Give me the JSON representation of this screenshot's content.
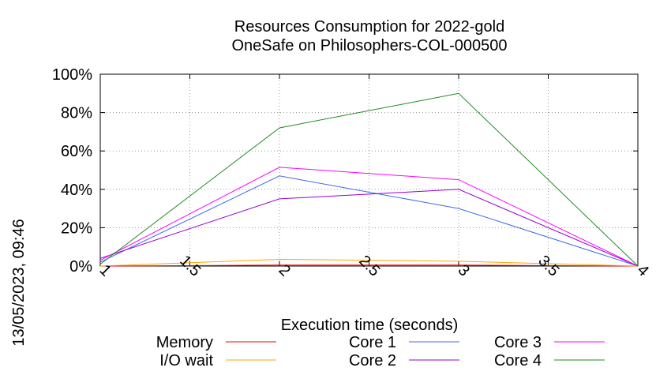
{
  "chart_data": {
    "type": "line",
    "title": "Resources Consumption for 2022-gold",
    "subtitle": "OneSafe on Philosophers-COL-000500",
    "xlabel": "Execution time (seconds)",
    "ylabel": "",
    "side_label": "13/05/2023, 09:46",
    "xlim": [
      1,
      4
    ],
    "ylim": [
      0,
      100
    ],
    "grid": true,
    "legend_position": "bottom",
    "x_ticks": [
      "1",
      "1.5",
      "2",
      "2.5",
      "3",
      "3.5",
      "4"
    ],
    "y_ticks": [
      "0%",
      "20%",
      "40%",
      "60%",
      "80%",
      "100%"
    ],
    "x": [
      1,
      2,
      3,
      4
    ],
    "series": [
      {
        "name": "Memory",
        "color": "#ff0000",
        "values": [
          0,
          0.5,
          0.5,
          0
        ]
      },
      {
        "name": "I/O wait",
        "color": "#ffa500",
        "values": [
          0,
          3.5,
          2.5,
          0
        ]
      },
      {
        "name": "Core 1",
        "color": "#4169e1",
        "values": [
          2,
          47,
          30,
          0
        ]
      },
      {
        "name": "Core 2",
        "color": "#9400d3",
        "values": [
          4,
          35,
          40,
          0
        ]
      },
      {
        "name": "Core 3",
        "color": "#ff00ff",
        "values": [
          3,
          51.5,
          45,
          0
        ]
      },
      {
        "name": "Core 4",
        "color": "#228b22",
        "values": [
          1,
          72,
          90,
          0
        ]
      }
    ]
  }
}
